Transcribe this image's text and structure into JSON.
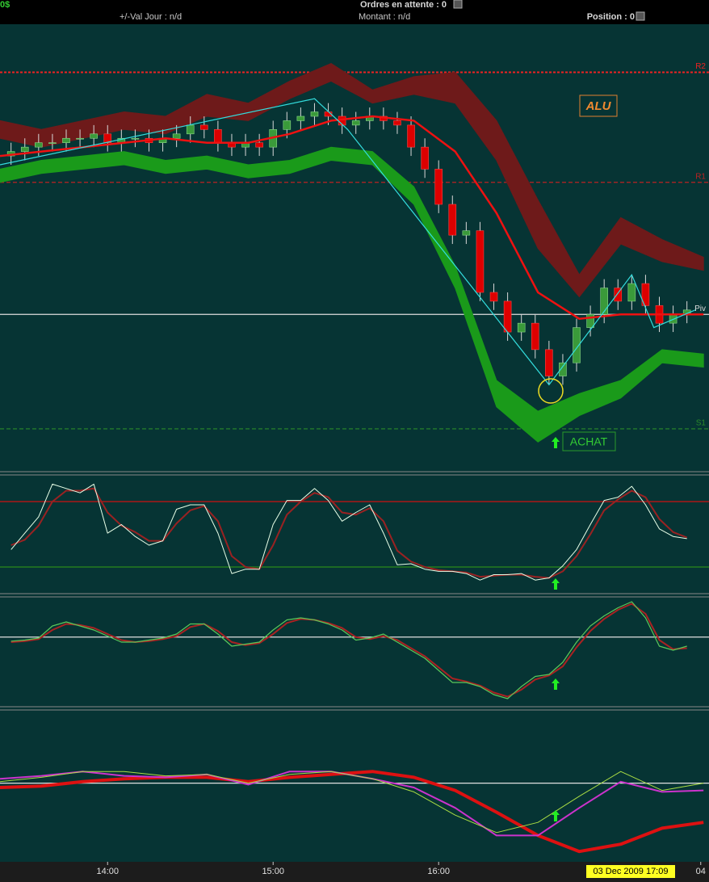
{
  "header": {
    "balance": "0$",
    "pending_label": "Ordres en attente : 0",
    "day_label": "+/-Val Jour : n/d",
    "amount_label": "Montant : n/d",
    "position_label": "Position : 0"
  },
  "x_axis": {
    "xlim": [
      801,
      1058
    ],
    "xticks": [
      {
        "value": 840,
        "label": "14:00"
      },
      {
        "value": 900,
        "label": "15:00"
      },
      {
        "value": 960,
        "label": "16:00"
      },
      {
        "value": 1055,
        "label": "04"
      }
    ],
    "cursor_label": "03 Dec 2009 17:09"
  },
  "chart_data": [
    {
      "type": "candlestick",
      "ylim": [
        0,
        100
      ],
      "up_color": "#3a9a3a",
      "down_color": "#dd0000",
      "x": [
        805,
        810,
        815,
        820,
        825,
        830,
        835,
        840,
        845,
        850,
        855,
        860,
        865,
        870,
        875,
        880,
        885,
        890,
        895,
        900,
        905,
        910,
        915,
        920,
        925,
        930,
        935,
        940,
        945,
        950,
        955,
        960,
        965,
        970,
        975,
        980,
        985,
        990,
        995,
        1000,
        1005,
        1010,
        1015,
        1020,
        1025,
        1030,
        1035,
        1040,
        1045,
        1050
      ],
      "open": [
        71,
        72,
        73,
        74,
        74,
        75,
        75,
        76,
        74,
        75,
        75,
        74,
        75,
        76,
        78,
        77,
        74,
        73,
        74,
        73,
        77,
        79,
        80,
        81,
        80,
        78,
        79,
        80,
        79,
        78,
        73,
        68,
        60,
        53,
        54,
        40,
        38,
        31,
        33,
        27,
        21,
        24,
        32,
        35,
        41,
        38,
        42,
        37,
        33,
        35
      ],
      "high": [
        74,
        75,
        76,
        76,
        77,
        77,
        78,
        78,
        77,
        77,
        77,
        77,
        78,
        80,
        80,
        79,
        76,
        76,
        76,
        79,
        81,
        82,
        83,
        83,
        82,
        81,
        82,
        82,
        81,
        80,
        75,
        70,
        62,
        56,
        56,
        42,
        40,
        35,
        35,
        29,
        26,
        34,
        37,
        43,
        43,
        44,
        44,
        39,
        37,
        38
      ],
      "low": [
        69,
        70,
        71,
        72,
        72,
        73,
        73,
        72,
        72,
        73,
        72,
        72,
        73,
        74,
        75,
        72,
        71,
        71,
        71,
        71,
        75,
        77,
        78,
        78,
        76,
        76,
        77,
        77,
        76,
        71,
        66,
        58,
        51,
        51,
        38,
        36,
        29,
        29,
        25,
        19,
        19,
        22,
        30,
        33,
        36,
        36,
        35,
        31,
        31,
        33
      ],
      "close": [
        72,
        73,
        74,
        74,
        75,
        75,
        76,
        74,
        75,
        75,
        74,
        75,
        76,
        78,
        77,
        74,
        73,
        74,
        73,
        77,
        79,
        80,
        81,
        80,
        78,
        79,
        80,
        79,
        78,
        73,
        68,
        60,
        53,
        54,
        40,
        38,
        31,
        33,
        27,
        21,
        24,
        32,
        35,
        41,
        38,
        42,
        37,
        33,
        35,
        36
      ],
      "band_x": [
        801,
        816,
        831,
        846,
        861,
        876,
        891,
        906,
        921,
        936,
        951,
        966,
        981,
        996,
        1011,
        1026,
        1041,
        1056
      ],
      "upper_band": {
        "color": "#6e1a1a",
        "high": [
          79,
          77,
          79,
          81,
          80,
          85,
          83,
          88,
          92,
          86,
          89,
          90,
          79,
          61,
          44,
          57,
          52,
          48
        ],
        "low": [
          75,
          73,
          75,
          77,
          76,
          80,
          79,
          84,
          88,
          83,
          85,
          83,
          70,
          50,
          39,
          51,
          47,
          45
        ]
      },
      "lower_band": {
        "color": "#1a9a1a",
        "high": [
          68,
          70,
          71,
          72,
          70,
          71,
          69,
          70,
          73,
          72,
          64,
          46,
          20,
          13,
          17,
          20,
          27,
          26
        ],
        "low": [
          65,
          67,
          68,
          69,
          67,
          68,
          66,
          67,
          70,
          69,
          60,
          41,
          14,
          6,
          12,
          16,
          24,
          23
        ]
      },
      "moving_average": {
        "color": "#ee1111",
        "values": [
          71,
          72,
          73,
          74,
          75,
          74,
          74,
          76,
          79,
          80,
          79,
          72,
          58,
          40,
          34,
          35,
          35,
          35
        ]
      },
      "zigzag": {
        "color": "#33dddd",
        "x": [
          801,
          915,
          927,
          1000,
          1030,
          1038,
          1053
        ],
        "values": [
          69,
          84,
          77,
          19,
          44,
          32,
          36
        ]
      },
      "levels": [
        {
          "label": "R2",
          "value": 90,
          "color": "#ee2222",
          "style": "dotted"
        },
        {
          "label": "R1",
          "value": 65,
          "color": "#bb2222",
          "style": "dashed"
        },
        {
          "label": "Piv",
          "value": 35,
          "color": "#dddddd",
          "style": "solid"
        },
        {
          "label": "S1",
          "value": 9,
          "color": "#2a8a2a",
          "style": "dashed"
        }
      ],
      "annotations": [
        "ALU",
        "ACHAT"
      ]
    },
    {
      "type": "line",
      "ylim": [
        0,
        100
      ],
      "x": [
        805,
        810,
        815,
        820,
        825,
        830,
        835,
        840,
        845,
        850,
        855,
        860,
        865,
        870,
        875,
        880,
        885,
        890,
        895,
        900,
        905,
        910,
        915,
        920,
        925,
        930,
        935,
        940,
        945,
        950,
        955,
        960,
        965,
        970,
        975,
        980,
        985,
        990,
        995,
        1000,
        1005,
        1010,
        1015,
        1020,
        1025,
        1030,
        1035,
        1040,
        1045,
        1050
      ],
      "series": [
        {
          "color": "#9a2222",
          "width": 2,
          "values": [
            40,
            45,
            58,
            80,
            90,
            90,
            92,
            70,
            58,
            52,
            44,
            44,
            60,
            72,
            76,
            62,
            30,
            20,
            18,
            40,
            68,
            80,
            88,
            84,
            70,
            68,
            74,
            62,
            35,
            25,
            20,
            17,
            16,
            15,
            11,
            12,
            13,
            13,
            11,
            10,
            16,
            30,
            50,
            72,
            82,
            90,
            84,
            64,
            52,
            47
          ]
        },
        {
          "color": "#e8ffe8",
          "width": 1,
          "values": [
            36,
            51,
            66,
            96,
            92,
            88,
            96,
            51,
            59,
            48,
            40,
            44,
            73,
            77,
            77,
            51,
            14,
            18,
            18,
            59,
            81,
            81,
            92,
            81,
            62,
            70,
            77,
            51,
            22,
            23,
            18,
            16,
            16,
            14,
            8,
            13,
            13,
            14,
            8,
            10,
            21,
            36,
            59,
            81,
            84,
            94,
            77,
            55,
            48,
            46
          ]
        }
      ],
      "levels": [
        {
          "value": 80,
          "color": "#cc1111"
        },
        {
          "value": 20,
          "color": "#2a8a1a"
        }
      ]
    },
    {
      "type": "line",
      "ylim": [
        0,
        100
      ],
      "x": [
        805,
        810,
        815,
        820,
        825,
        830,
        835,
        840,
        845,
        850,
        855,
        860,
        865,
        870,
        875,
        880,
        885,
        890,
        895,
        900,
        905,
        910,
        915,
        920,
        925,
        930,
        935,
        940,
        945,
        950,
        955,
        960,
        965,
        970,
        975,
        980,
        985,
        990,
        995,
        1000,
        1005,
        1010,
        1015,
        1020,
        1025,
        1030,
        1035,
        1040,
        1045,
        1050
      ],
      "series": [
        {
          "color": "#aa2222",
          "width": 2,
          "values": [
            60,
            61,
            63,
            72,
            78,
            77,
            74,
            68,
            62,
            60,
            61,
            63,
            66,
            75,
            78,
            71,
            60,
            57,
            59,
            68,
            79,
            83,
            82,
            79,
            74,
            65,
            63,
            66,
            62,
            54,
            46,
            35,
            24,
            21,
            17,
            10,
            6,
            13,
            23,
            27,
            36,
            55,
            71,
            83,
            92,
            98,
            88,
            62,
            53,
            54
          ]
        },
        {
          "color": "#5ac85a",
          "width": 1.2,
          "values": [
            61,
            62,
            64,
            76,
            80,
            76,
            72,
            66,
            60,
            60,
            62,
            64,
            68,
            78,
            78,
            68,
            56,
            58,
            60,
            72,
            82,
            84,
            82,
            78,
            72,
            62,
            64,
            68,
            60,
            52,
            44,
            32,
            20,
            20,
            16,
            8,
            4,
            16,
            26,
            28,
            40,
            60,
            76,
            86,
            94,
            100,
            84,
            56,
            52,
            56
          ]
        }
      ],
      "levels": [
        {
          "value": 65,
          "color": "#e0e0e0"
        }
      ]
    },
    {
      "type": "line",
      "ylim": [
        0,
        100
      ],
      "x": [
        801,
        816,
        831,
        846,
        861,
        876,
        891,
        906,
        921,
        936,
        951,
        966,
        981,
        996,
        1011,
        1026,
        1041,
        1056
      ],
      "series": [
        {
          "color": "#dd1111",
          "width": 4,
          "values": [
            50,
            51,
            54,
            56,
            57,
            57,
            54,
            57,
            59,
            61,
            57,
            48,
            33,
            17,
            6,
            11,
            22,
            26
          ]
        },
        {
          "color": "#cc33cc",
          "width": 2,
          "values": [
            56,
            58,
            61,
            58,
            57,
            59,
            52,
            61,
            61,
            56,
            50,
            36,
            17,
            17,
            36,
            54,
            47,
            48
          ]
        },
        {
          "color": "#aadd44",
          "width": 1,
          "values": [
            54,
            57,
            61,
            61,
            58,
            59,
            53,
            59,
            61,
            56,
            47,
            31,
            19,
            26,
            44,
            61,
            48,
            53
          ]
        }
      ],
      "levels": [
        {
          "value": 53,
          "color": "#e0e0e0"
        }
      ]
    }
  ]
}
